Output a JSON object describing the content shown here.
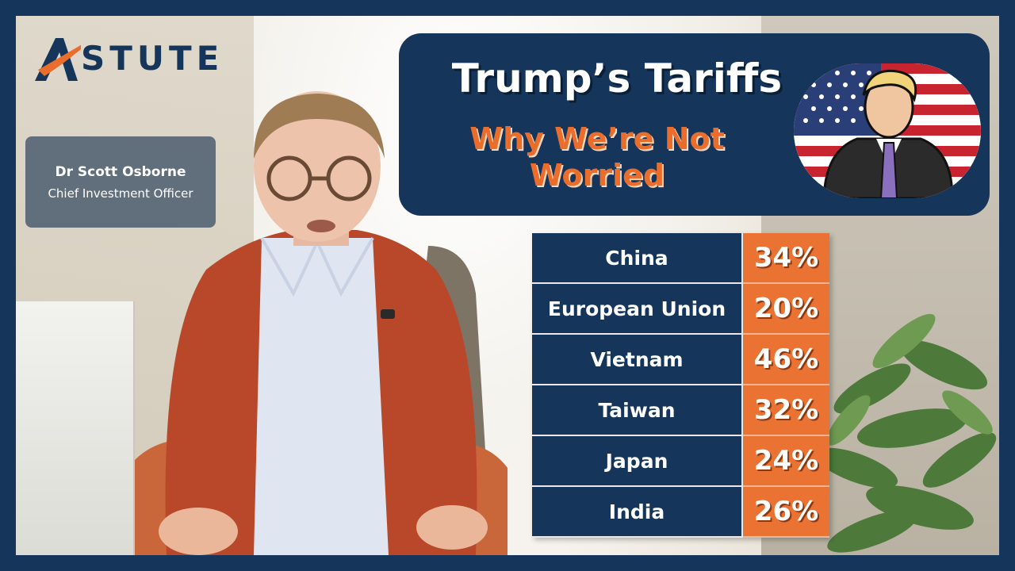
{
  "brand": {
    "logo_text": "STUTE",
    "logo_mark": "astute-a-logo"
  },
  "presenter": {
    "name": "Dr Scott Osborne",
    "title": "Chief Investment Officer"
  },
  "headline": {
    "title": "Trump’s Tariffs",
    "subtitle_line1": "Why We’re Not",
    "subtitle_line2": "Worried"
  },
  "colors": {
    "navy": "#15355a",
    "orange": "#ea7333",
    "white": "#ffffff"
  },
  "tariffs": [
    {
      "country": "China",
      "rate": "34%"
    },
    {
      "country": "European Union",
      "rate": "20%"
    },
    {
      "country": "Vietnam",
      "rate": "46%"
    },
    {
      "country": "Taiwan",
      "rate": "32%"
    },
    {
      "country": "Japan",
      "rate": "24%"
    },
    {
      "country": "India",
      "rate": "26%"
    }
  ]
}
